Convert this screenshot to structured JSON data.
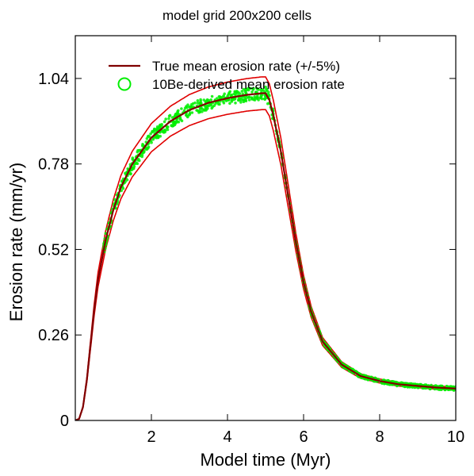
{
  "chart_data": {
    "type": "line",
    "title": "model grid 200x200 cells",
    "xlabel": "Model time (Myr)",
    "ylabel": "Erosion rate (mm/yr)",
    "xlim": [
      0,
      10
    ],
    "ylim": [
      0,
      1.17
    ],
    "xticks": [
      2,
      4,
      6,
      8,
      10
    ],
    "yticks": [
      0,
      0.26,
      0.52,
      0.78,
      1.04
    ],
    "ytick_labels": [
      "0",
      "0.26",
      "0.52",
      "0.78",
      "1.04"
    ],
    "grid": false,
    "legend_position": "top-left",
    "colors": {
      "true_line": "#7f0000",
      "band": "#e00000",
      "derived": "#00ee00"
    },
    "series": [
      {
        "name": "True mean erosion rate (+/-5%)",
        "style": "line",
        "x": [
          0,
          0.1,
          0.2,
          0.3,
          0.4,
          0.5,
          0.6,
          0.8,
          1.0,
          1.2,
          1.5,
          2.0,
          2.5,
          3.0,
          3.5,
          4.0,
          4.5,
          4.9,
          5.0,
          5.1,
          5.2,
          5.4,
          5.6,
          5.8,
          6.0,
          6.2,
          6.5,
          7.0,
          7.5,
          8.0,
          8.5,
          9.0,
          9.5,
          10.0
        ],
        "y": [
          0,
          0.005,
          0.04,
          0.12,
          0.23,
          0.34,
          0.43,
          0.55,
          0.64,
          0.71,
          0.78,
          0.86,
          0.91,
          0.944,
          0.966,
          0.98,
          0.99,
          0.995,
          0.995,
          0.975,
          0.93,
          0.82,
          0.68,
          0.54,
          0.42,
          0.33,
          0.24,
          0.17,
          0.135,
          0.12,
          0.11,
          0.105,
          0.1,
          0.097
        ]
      },
      {
        "name": "10Be-derived mean erosion rate",
        "style": "scatter"
      }
    ]
  }
}
